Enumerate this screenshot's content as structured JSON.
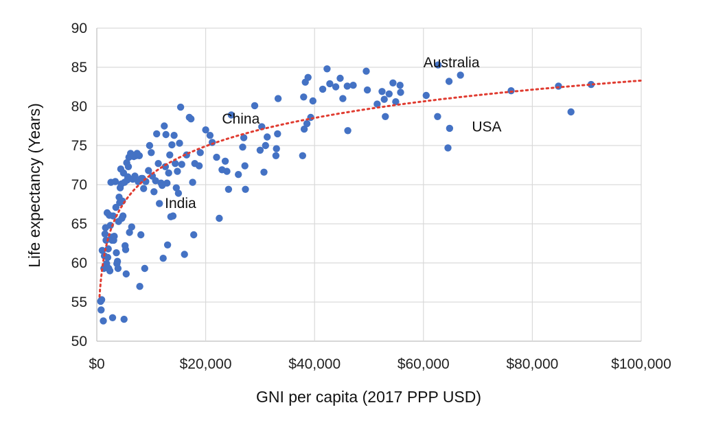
{
  "chart_data": {
    "type": "scatter",
    "title": "",
    "xlabel": "GNI per capita (2017 PPP USD)",
    "ylabel": "Life expectancy (Years)",
    "xlim": [
      0,
      100000
    ],
    "ylim": [
      50,
      90
    ],
    "x_ticks": [
      0,
      20000,
      40000,
      60000,
      80000,
      100000
    ],
    "x_tick_labels": [
      "$0",
      "$20,000",
      "$40,000",
      "$60,000",
      "$80,000",
      "$100,000"
    ],
    "y_ticks": [
      50,
      55,
      60,
      65,
      70,
      75,
      80,
      85,
      90
    ],
    "y_tick_labels": [
      "50",
      "55",
      "60",
      "65",
      "70",
      "75",
      "80",
      "85",
      "90"
    ],
    "grid": true,
    "legend": false,
    "colors": {
      "points": "#4472c4",
      "trendline": "#e03c31"
    },
    "series": [
      {
        "points": [
          [
            700,
            55.1
          ],
          [
            900,
            55.3
          ],
          [
            800,
            54.0
          ],
          [
            1200,
            52.6
          ],
          [
            1000,
            61.6
          ],
          [
            1300,
            59.3
          ],
          [
            1400,
            60.9
          ],
          [
            1500,
            63.7
          ],
          [
            1600,
            64.5
          ],
          [
            1700,
            62.9
          ],
          [
            1800,
            59.9
          ],
          [
            1900,
            66.4
          ],
          [
            2000,
            60.7
          ],
          [
            2100,
            61.8
          ],
          [
            2200,
            59.3
          ],
          [
            2300,
            66.1
          ],
          [
            2400,
            59.0
          ],
          [
            2500,
            64.8
          ],
          [
            2600,
            70.3
          ],
          [
            2700,
            63.3
          ],
          [
            2800,
            62.9
          ],
          [
            2900,
            53.0
          ],
          [
            3000,
            66.0
          ],
          [
            3100,
            62.9
          ],
          [
            3200,
            63.4
          ],
          [
            3400,
            70.4
          ],
          [
            3500,
            67.1
          ],
          [
            3600,
            61.3
          ],
          [
            3700,
            59.9
          ],
          [
            3800,
            60.2
          ],
          [
            3900,
            59.3
          ],
          [
            4000,
            65.3
          ],
          [
            4100,
            68.4
          ],
          [
            4200,
            67.7
          ],
          [
            4300,
            69.6
          ],
          [
            4400,
            72.0
          ],
          [
            4500,
            70.1
          ],
          [
            4600,
            65.7
          ],
          [
            4700,
            67.9
          ],
          [
            4800,
            66.0
          ],
          [
            4900,
            71.5
          ],
          [
            5000,
            52.8
          ],
          [
            5100,
            70.3
          ],
          [
            5200,
            62.2
          ],
          [
            5300,
            61.7
          ],
          [
            5400,
            58.6
          ],
          [
            5500,
            72.8
          ],
          [
            5600,
            70.6
          ],
          [
            5700,
            71.0
          ],
          [
            5800,
            72.3
          ],
          [
            5900,
            73.5
          ],
          [
            6000,
            63.9
          ],
          [
            6200,
            74.0
          ],
          [
            6400,
            64.6
          ],
          [
            6600,
            70.7
          ],
          [
            6800,
            73.6
          ],
          [
            7000,
            71.1
          ],
          [
            7200,
            73.7
          ],
          [
            7400,
            74.0
          ],
          [
            7600,
            70.4
          ],
          [
            7800,
            73.7
          ],
          [
            7900,
            57.0
          ],
          [
            8100,
            63.6
          ],
          [
            8200,
            70.8
          ],
          [
            8400,
            70.8
          ],
          [
            8600,
            69.5
          ],
          [
            8800,
            59.3
          ],
          [
            9000,
            70.4
          ],
          [
            9500,
            71.8
          ],
          [
            9700,
            75.0
          ],
          [
            10000,
            74.1
          ],
          [
            10200,
            71.1
          ],
          [
            10500,
            69.1
          ],
          [
            10800,
            70.5
          ],
          [
            11000,
            76.5
          ],
          [
            11300,
            72.7
          ],
          [
            11500,
            67.6
          ],
          [
            11800,
            70.2
          ],
          [
            12000,
            69.9
          ],
          [
            12200,
            60.6
          ],
          [
            12400,
            77.5
          ],
          [
            12600,
            72.3
          ],
          [
            12700,
            76.4
          ],
          [
            12900,
            70.2
          ],
          [
            13000,
            62.3
          ],
          [
            13200,
            71.5
          ],
          [
            13400,
            73.8
          ],
          [
            13600,
            65.9
          ],
          [
            13800,
            75.1
          ],
          [
            14000,
            66.0
          ],
          [
            14200,
            76.3
          ],
          [
            14400,
            72.7
          ],
          [
            14600,
            69.6
          ],
          [
            14800,
            71.7
          ],
          [
            15000,
            68.9
          ],
          [
            15200,
            75.3
          ],
          [
            15400,
            79.9
          ],
          [
            15600,
            72.6
          ],
          [
            16100,
            61.1
          ],
          [
            16500,
            73.8
          ],
          [
            17000,
            78.6
          ],
          [
            17300,
            78.4
          ],
          [
            17600,
            70.3
          ],
          [
            17800,
            63.6
          ],
          [
            18000,
            72.7
          ],
          [
            18800,
            72.4
          ],
          [
            19000,
            74.1
          ],
          [
            20000,
            77.0
          ],
          [
            20800,
            76.3
          ],
          [
            21200,
            75.4
          ],
          [
            22000,
            73.5
          ],
          [
            22500,
            65.7
          ],
          [
            23000,
            71.9
          ],
          [
            23600,
            73.0
          ],
          [
            23900,
            71.7
          ],
          [
            24200,
            69.4
          ],
          [
            24700,
            78.9
          ],
          [
            26000,
            71.3
          ],
          [
            26800,
            74.8
          ],
          [
            27000,
            76.0
          ],
          [
            27200,
            72.4
          ],
          [
            27300,
            69.4
          ],
          [
            29000,
            80.1
          ],
          [
            30000,
            74.4
          ],
          [
            30300,
            77.4
          ],
          [
            30700,
            71.6
          ],
          [
            31000,
            75.0
          ],
          [
            31300,
            76.1
          ],
          [
            32900,
            73.7
          ],
          [
            33000,
            74.6
          ],
          [
            33200,
            76.5
          ],
          [
            33300,
            81.0
          ],
          [
            37800,
            73.7
          ],
          [
            38000,
            81.2
          ],
          [
            38100,
            77.1
          ],
          [
            38300,
            83.1
          ],
          [
            38600,
            77.8
          ],
          [
            38800,
            83.7
          ],
          [
            39300,
            78.6
          ],
          [
            39700,
            80.7
          ],
          [
            41500,
            82.2
          ],
          [
            42300,
            84.8
          ],
          [
            42800,
            82.9
          ],
          [
            43900,
            82.5
          ],
          [
            44700,
            83.6
          ],
          [
            45200,
            81.0
          ],
          [
            46000,
            82.6
          ],
          [
            46100,
            76.9
          ],
          [
            47100,
            82.7
          ],
          [
            49500,
            84.5
          ],
          [
            49700,
            82.1
          ],
          [
            51500,
            80.3
          ],
          [
            52400,
            81.9
          ],
          [
            52800,
            80.9
          ],
          [
            53000,
            78.7
          ],
          [
            53700,
            81.6
          ],
          [
            54400,
            83.0
          ],
          [
            54900,
            80.6
          ],
          [
            55700,
            82.7
          ],
          [
            55800,
            81.8
          ],
          [
            60500,
            81.4
          ],
          [
            62600,
            78.7
          ],
          [
            62700,
            85.3
          ],
          [
            64700,
            83.2
          ],
          [
            64800,
            77.2
          ],
          [
            64500,
            74.7
          ],
          [
            66800,
            84.0
          ],
          [
            76100,
            82.0
          ],
          [
            84800,
            82.6
          ],
          [
            87100,
            79.3
          ],
          [
            90800,
            82.8
          ]
        ]
      }
    ],
    "trendline": {
      "type": "logarithmic",
      "style": "dotted",
      "x_range": [
        500,
        100000
      ],
      "y_at_x_start": 55.7,
      "y_at_x_end": 83.3
    },
    "annotations": [
      {
        "text": "Australia",
        "x": 60000,
        "y": 85.0
      },
      {
        "text": "China",
        "x": 23000,
        "y": 77.8
      },
      {
        "text": "USA",
        "x": 68900,
        "y": 76.8
      },
      {
        "text": "India",
        "x": 12500,
        "y": 67.0
      }
    ]
  }
}
